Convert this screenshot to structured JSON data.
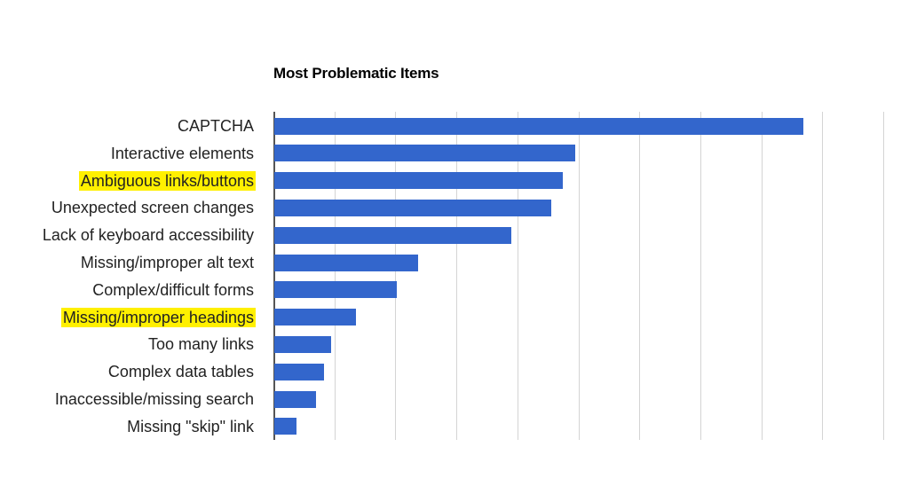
{
  "chart_data": {
    "type": "bar",
    "orientation": "horizontal",
    "title": "Most Problematic Items",
    "xlabel": "",
    "ylabel": "",
    "xlim": [
      0,
      10
    ],
    "grid": true,
    "gridlines": 10,
    "tick_labels_visible": false,
    "legend": "none",
    "bar_color": "#3366cc",
    "highlight_color": "#fff000",
    "categories": [
      "CAPTCHA",
      "Interactive elements",
      "Ambiguous links/buttons",
      "Unexpected screen changes",
      "Lack of keyboard accessibility",
      "Missing/improper alt text",
      "Complex/difficult forms",
      "Missing/improper headings",
      "Too many links",
      "Complex data tables",
      "Inaccessible/missing search",
      "Missing \"skip\" link"
    ],
    "values": [
      8.68,
      4.93,
      4.73,
      4.54,
      3.89,
      2.36,
      2.01,
      1.34,
      0.93,
      0.82,
      0.68,
      0.36
    ],
    "highlighted": [
      "Ambiguous links/buttons",
      "Missing/improper headings"
    ]
  }
}
